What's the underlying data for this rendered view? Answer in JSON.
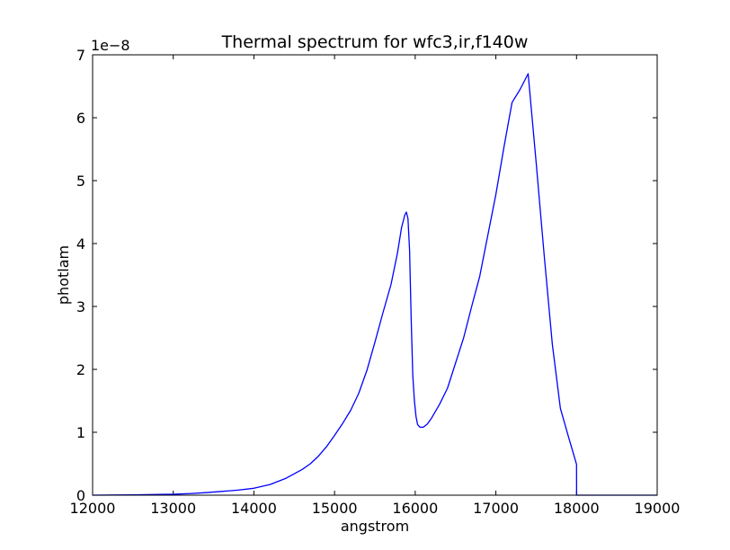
{
  "chart_data": {
    "type": "line",
    "title": "Thermal spectrum for wfc3,ir,f140w",
    "xlabel": "angstrom",
    "ylabel": "photlam",
    "y_offset_label": "1e−8",
    "xlim": [
      12000,
      19000
    ],
    "ylim": [
      0,
      7
    ],
    "xticks": [
      12000,
      13000,
      14000,
      15000,
      16000,
      17000,
      18000,
      19000
    ],
    "yticks": [
      0,
      1,
      2,
      3,
      4,
      5,
      6,
      7
    ],
    "grid": false,
    "line_color": "#0000ff",
    "series": [
      {
        "x": [
          12000,
          12500,
          13000,
          13200,
          13400,
          13600,
          13800,
          14000,
          14200,
          14400,
          14600,
          14700,
          14800,
          14900,
          15000,
          15100,
          15200,
          15300,
          15400,
          15500,
          15600,
          15700,
          15780,
          15830,
          15870,
          15890,
          15910,
          15930,
          15950,
          15970,
          15990,
          16010,
          16030,
          16060,
          16100,
          16150,
          16200,
          16300,
          16400,
          16500,
          16600,
          16700,
          16800,
          16900,
          17000,
          17100,
          17200,
          17300,
          17400,
          17500,
          17600,
          17700,
          17800,
          17900,
          18000,
          18001,
          18500,
          19000
        ],
        "y": [
          0.0,
          0.005,
          0.015,
          0.025,
          0.04,
          0.06,
          0.08,
          0.11,
          0.17,
          0.27,
          0.41,
          0.5,
          0.62,
          0.77,
          0.95,
          1.14,
          1.35,
          1.62,
          1.98,
          2.43,
          2.9,
          3.35,
          3.85,
          4.25,
          4.45,
          4.5,
          4.4,
          3.9,
          2.8,
          1.9,
          1.5,
          1.25,
          1.12,
          1.08,
          1.08,
          1.13,
          1.22,
          1.44,
          1.7,
          2.1,
          2.5,
          3.0,
          3.48,
          4.13,
          4.78,
          5.53,
          6.24,
          6.45,
          6.7,
          5.28,
          3.8,
          2.4,
          1.38,
          0.93,
          0.49,
          0.0,
          0.0,
          0.0
        ]
      }
    ]
  }
}
